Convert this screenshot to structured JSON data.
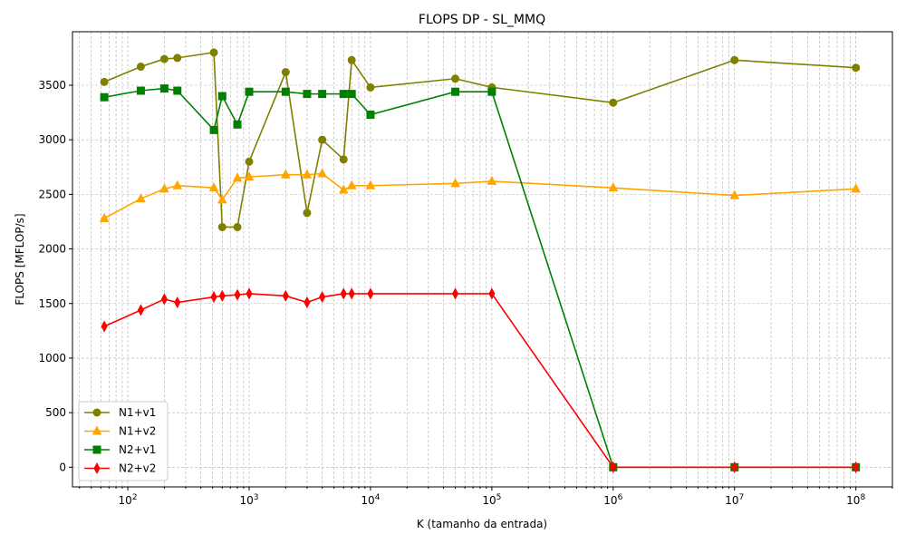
{
  "chart_data": {
    "type": "line",
    "title": "FLOPS DP - SL_MMQ",
    "xlabel": "K (tamanho da entrada)",
    "ylabel": "FLOPS [MFLOP/s]",
    "xscale": "log",
    "xlim": [
      35,
      200000000
    ],
    "ylim": [
      -180,
      3990
    ],
    "yticks": [
      0,
      500,
      1000,
      1500,
      2000,
      2500,
      3000,
      3500
    ],
    "xticks": [
      {
        "value": 100,
        "base": "10",
        "exp": "2"
      },
      {
        "value": 1000,
        "base": "10",
        "exp": "3"
      },
      {
        "value": 10000,
        "base": "10",
        "exp": "4"
      },
      {
        "value": 100000,
        "base": "10",
        "exp": "5"
      },
      {
        "value": 1000000,
        "base": "10",
        "exp": "6"
      },
      {
        "value": 10000000,
        "base": "10",
        "exp": "7"
      },
      {
        "value": 100000000,
        "base": "10",
        "exp": "8"
      }
    ],
    "grid": true,
    "legend_position": "lower-left",
    "x": [
      64,
      128,
      200,
      256,
      512,
      600,
      800,
      1000,
      2000,
      3000,
      4000,
      6000,
      7000,
      10000,
      50000,
      100000,
      1000000,
      10000000,
      100000000
    ],
    "series": [
      {
        "name": "N1+v1",
        "color": "#808000",
        "marker": "circle",
        "values": [
          3530,
          3670,
          3740,
          3750,
          3800,
          2200,
          2200,
          2800,
          3620,
          2330,
          3000,
          2820,
          3730,
          3480,
          3560,
          3480,
          3340,
          3730,
          3660
        ]
      },
      {
        "name": "N1+v2",
        "color": "#ffa500",
        "marker": "triangle",
        "values": [
          2280,
          2460,
          2550,
          2580,
          2560,
          2450,
          2650,
          2660,
          2680,
          2680,
          2690,
          2540,
          2580,
          2580,
          2600,
          2620,
          2560,
          2490,
          2550
        ]
      },
      {
        "name": "N2+v1",
        "color": "#008000",
        "marker": "square",
        "values": [
          3390,
          3450,
          3470,
          3450,
          3090,
          3400,
          3140,
          3440,
          3440,
          3420,
          3420,
          3420,
          3420,
          3230,
          3440,
          3440,
          0,
          0,
          0
        ]
      },
      {
        "name": "N2+v2",
        "color": "#ff0000",
        "marker": "diamond",
        "values": [
          1290,
          1440,
          1540,
          1510,
          1560,
          1570,
          1580,
          1590,
          1570,
          1510,
          1560,
          1590,
          1590,
          1590,
          1590,
          1590,
          0,
          0,
          0
        ]
      }
    ]
  }
}
